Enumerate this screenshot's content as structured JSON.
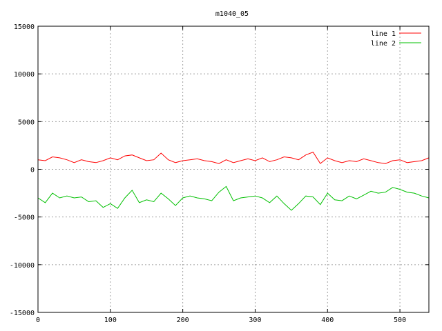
{
  "chart_data": {
    "type": "line",
    "title": "m1040_05",
    "xlabel": "",
    "ylabel": "",
    "xlim": [
      0,
      540
    ],
    "ylim": [
      -15000,
      15000
    ],
    "x_ticks": [
      0,
      100,
      200,
      300,
      400,
      500
    ],
    "y_ticks": [
      -15000,
      -10000,
      -5000,
      0,
      5000,
      10000,
      15000
    ],
    "grid": true,
    "legend_position": "top-right",
    "series": [
      {
        "name": "line 1",
        "color": "#ff0000",
        "x": [
          0,
          10,
          20,
          30,
          40,
          50,
          60,
          70,
          80,
          90,
          100,
          110,
          120,
          130,
          140,
          150,
          160,
          170,
          180,
          190,
          200,
          210,
          220,
          230,
          240,
          250,
          260,
          270,
          280,
          290,
          300,
          310,
          320,
          330,
          340,
          350,
          360,
          370,
          380,
          390,
          400,
          410,
          420,
          430,
          440,
          450,
          460,
          470,
          480,
          490,
          500,
          510,
          520,
          530,
          540
        ],
        "y": [
          1000,
          900,
          1300,
          1200,
          1000,
          700,
          1000,
          800,
          700,
          900,
          1200,
          1000,
          1400,
          1500,
          1200,
          900,
          1000,
          1700,
          1000,
          700,
          900,
          1000,
          1100,
          900,
          800,
          600,
          1000,
          700,
          900,
          1100,
          900,
          1200,
          800,
          1000,
          1300,
          1200,
          1000,
          1500,
          1800,
          600,
          1200,
          900,
          700,
          900,
          800,
          1100,
          900,
          700,
          600,
          900,
          1000,
          700,
          800,
          900,
          1200
        ]
      },
      {
        "name": "line 2",
        "color": "#00c000",
        "x": [
          0,
          10,
          20,
          30,
          40,
          50,
          60,
          70,
          80,
          90,
          100,
          110,
          120,
          130,
          140,
          150,
          160,
          170,
          180,
          190,
          200,
          210,
          220,
          230,
          240,
          250,
          260,
          270,
          280,
          290,
          300,
          310,
          320,
          330,
          340,
          350,
          360,
          370,
          380,
          390,
          400,
          410,
          420,
          430,
          440,
          450,
          460,
          470,
          480,
          490,
          500,
          510,
          520,
          530,
          540
        ],
        "y": [
          -3000,
          -3500,
          -2500,
          -3000,
          -2800,
          -3000,
          -2900,
          -3400,
          -3300,
          -4000,
          -3600,
          -4100,
          -3000,
          -2200,
          -3500,
          -3200,
          -3400,
          -2500,
          -3100,
          -3800,
          -3000,
          -2800,
          -3000,
          -3100,
          -3300,
          -2400,
          -1800,
          -3300,
          -3000,
          -2900,
          -2800,
          -3000,
          -3500,
          -2800,
          -3600,
          -4300,
          -3600,
          -2800,
          -2900,
          -3700,
          -2500,
          -3200,
          -3300,
          -2800,
          -3100,
          -2700,
          -2300,
          -2500,
          -2400,
          -1900,
          -2100,
          -2400,
          -2500,
          -2800,
          -3000
        ]
      }
    ]
  }
}
